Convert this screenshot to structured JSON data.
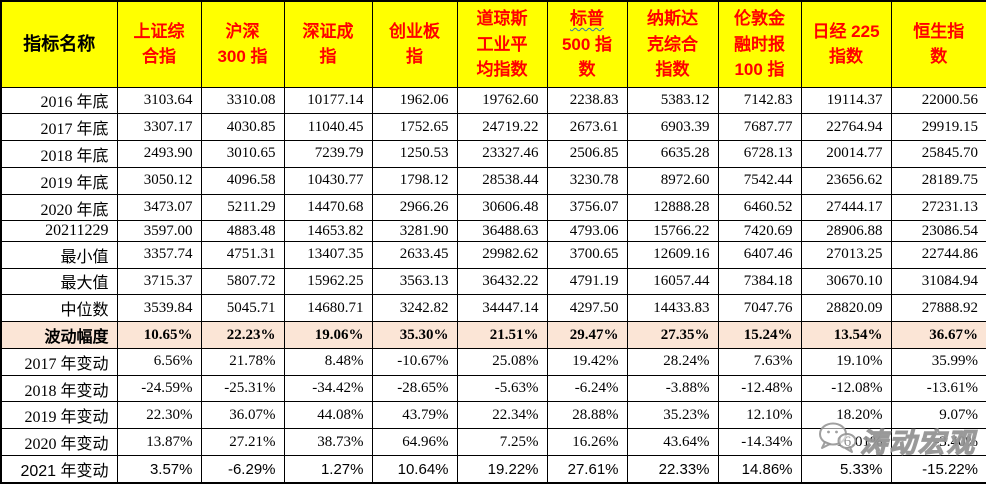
{
  "colors": {
    "header_bg": "#FFFF00",
    "header_text": "#FF0000",
    "corner_text": "#000000",
    "highlight_row_bg": "#FBE5D6",
    "border": "#000000",
    "spellcheck_squiggle": "#2E75B6",
    "watermark_gray": "#919191"
  },
  "table": {
    "corner_label": "指标名称",
    "columns": [
      {
        "label": "上证综\n合指"
      },
      {
        "label": "沪深\n300 指"
      },
      {
        "label": "深证成\n指"
      },
      {
        "label": "创业板\n指"
      },
      {
        "label": "道琼斯\n工业平\n均指数"
      },
      {
        "label": "标普\n500 指\n数",
        "squiggle_prefix_chars": 2
      },
      {
        "label": "纳斯达\n克综合\n指数"
      },
      {
        "label": "伦敦金\n融时报\n100 指"
      },
      {
        "label": "日经 225\n指数"
      },
      {
        "label": "恒生指\n数"
      }
    ],
    "rows": [
      {
        "label": "2016 年底",
        "style": "value",
        "values": [
          "3103.64",
          "3310.08",
          "10177.14",
          "1962.06",
          "19762.60",
          "2238.83",
          "5383.12",
          "7142.83",
          "19114.37",
          "22000.56"
        ]
      },
      {
        "label": "2017 年底",
        "style": "value",
        "values": [
          "3307.17",
          "4030.85",
          "11040.45",
          "1752.65",
          "24719.22",
          "2673.61",
          "6903.39",
          "7687.77",
          "22764.94",
          "29919.15"
        ]
      },
      {
        "label": "2018 年底",
        "style": "value",
        "values": [
          "2493.90",
          "3010.65",
          "7239.79",
          "1250.53",
          "23327.46",
          "2506.85",
          "6635.28",
          "6728.13",
          "20014.77",
          "25845.70"
        ]
      },
      {
        "label": "2019 年底",
        "style": "value",
        "values": [
          "3050.12",
          "4096.58",
          "10430.77",
          "1798.12",
          "28538.44",
          "3230.78",
          "8972.60",
          "7542.44",
          "23656.62",
          "28189.75"
        ]
      },
      {
        "label": "2020 年底",
        "style": "value",
        "values": [
          "3473.07",
          "5211.29",
          "14470.68",
          "2966.26",
          "30606.48",
          "3756.07",
          "12888.28",
          "6460.52",
          "27444.17",
          "27231.13"
        ]
      },
      {
        "label": "20211229",
        "style": "value",
        "values": [
          "3597.00",
          "4883.48",
          "14653.82",
          "3281.90",
          "36488.63",
          "4793.06",
          "15766.22",
          "7420.69",
          "28906.88",
          "23086.54"
        ]
      },
      {
        "label": "最小值",
        "style": "value",
        "values": [
          "3357.74",
          "4751.31",
          "13407.35",
          "2633.45",
          "29982.62",
          "3700.65",
          "12609.16",
          "6407.46",
          "27013.25",
          "22744.86"
        ]
      },
      {
        "label": "最大值",
        "style": "value",
        "values": [
          "3715.37",
          "5807.72",
          "15962.25",
          "3563.13",
          "36432.22",
          "4791.19",
          "16057.44",
          "7384.18",
          "30670.10",
          "31084.94"
        ]
      },
      {
        "label": "中位数",
        "style": "value",
        "values": [
          "3539.84",
          "5045.71",
          "14680.71",
          "3242.82",
          "34447.14",
          "4297.50",
          "14433.83",
          "7047.76",
          "28820.09",
          "27888.92"
        ]
      },
      {
        "label": "波动幅度",
        "style": "highlight",
        "values": [
          "10.65%",
          "22.23%",
          "19.06%",
          "35.30%",
          "21.51%",
          "29.47%",
          "27.35%",
          "15.24%",
          "13.54%",
          "36.67%"
        ]
      },
      {
        "label": "2017 年变动",
        "style": "percent",
        "values": [
          "6.56%",
          "21.78%",
          "8.48%",
          "-10.67%",
          "25.08%",
          "19.42%",
          "28.24%",
          "7.63%",
          "19.10%",
          "35.99%"
        ]
      },
      {
        "label": "2018 年变动",
        "style": "percent",
        "values": [
          "-24.59%",
          "-25.31%",
          "-34.42%",
          "-28.65%",
          "-5.63%",
          "-6.24%",
          "-3.88%",
          "-12.48%",
          "-12.08%",
          "-13.61%"
        ]
      },
      {
        "label": "2019 年变动",
        "style": "percent",
        "values": [
          "22.30%",
          "36.07%",
          "44.08%",
          "43.79%",
          "22.34%",
          "28.88%",
          "35.23%",
          "12.10%",
          "18.20%",
          "9.07%"
        ]
      },
      {
        "label": "2020 年变动",
        "style": "percent",
        "values": [
          "13.87%",
          "27.21%",
          "38.73%",
          "64.96%",
          "7.25%",
          "16.26%",
          "43.64%",
          "-14.34%",
          "16.01%",
          "-3.40%"
        ]
      },
      {
        "label": "2021 年变动",
        "style": "percent-sans",
        "values": [
          "3.57%",
          "-6.29%",
          "1.27%",
          "10.64%",
          "19.22%",
          "27.61%",
          "22.33%",
          "14.86%",
          "5.33%",
          "-15.22%"
        ]
      }
    ]
  },
  "watermark": {
    "text": "涛动宏观",
    "icon": "wechat-bubbles-icon"
  }
}
